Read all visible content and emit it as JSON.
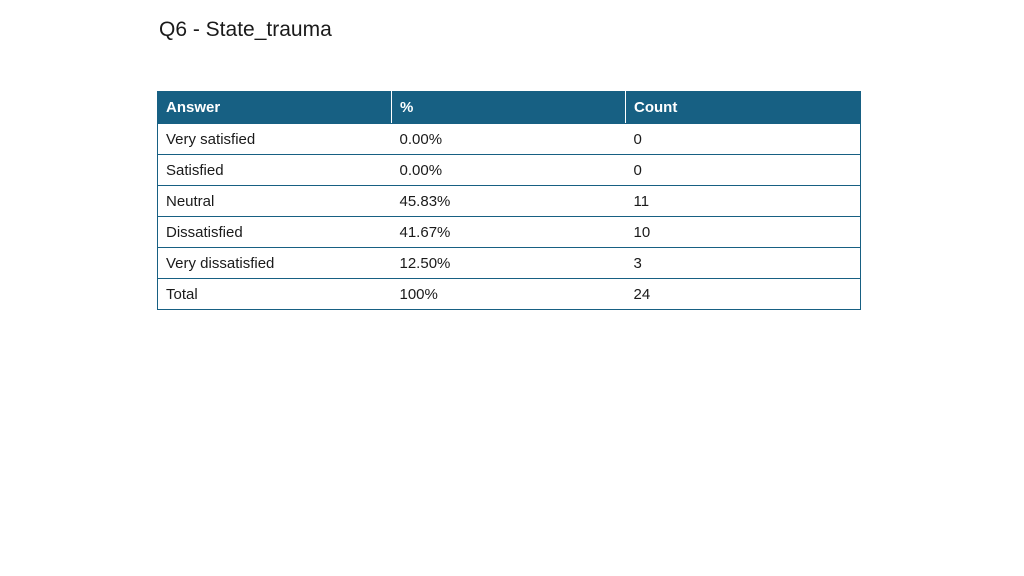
{
  "title": "Q6 - State_trauma",
  "table": {
    "headers": {
      "answer": "Answer",
      "percent": "%",
      "count": "Count"
    },
    "rows": [
      {
        "answer": "Very satisfied",
        "percent": "0.00%",
        "count": "0"
      },
      {
        "answer": "Satisfied",
        "percent": "0.00%",
        "count": "0"
      },
      {
        "answer": "Neutral",
        "percent": "45.83%",
        "count": "11"
      },
      {
        "answer": "Dissatisfied",
        "percent": "41.67%",
        "count": "10"
      },
      {
        "answer": "Very dissatisfied",
        "percent": "12.50%",
        "count": "3"
      },
      {
        "answer": "Total",
        "percent": "100%",
        "count": "24"
      }
    ]
  },
  "colors": {
    "header_background": "#176083",
    "header_text": "#ffffff",
    "border": "#176083",
    "body_text": "#1a1a1a"
  }
}
